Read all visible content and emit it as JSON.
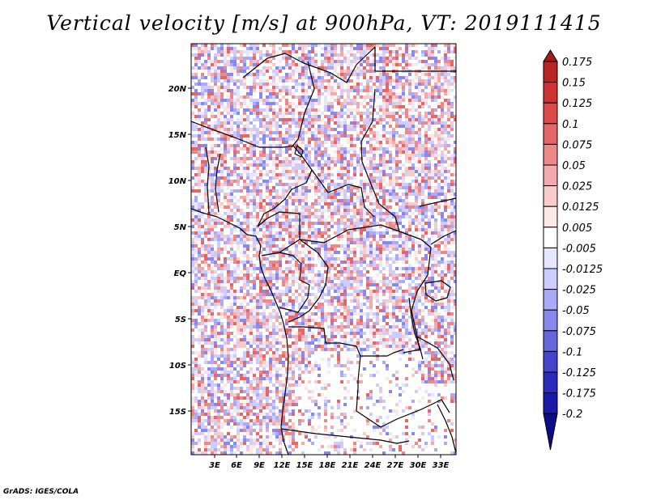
{
  "title": "Vertical velocity [m/s] at 900hPa, VT: 2019111415",
  "credit": "GrADS: IGES/COLA",
  "map": {
    "lat_labels": [
      "20N",
      "15N",
      "10N",
      "5N",
      "EQ",
      "5S",
      "10S",
      "15S"
    ],
    "lon_labels": [
      "3E",
      "6E",
      "9E",
      "12E",
      "15E",
      "18E",
      "21E",
      "24E",
      "27E",
      "30E",
      "33E"
    ]
  },
  "colorbar": {
    "levels": [
      "0.175",
      "0.15",
      "0.125",
      "0.1",
      "0.075",
      "0.05",
      "0.025",
      "0.0125",
      "0.005",
      "-0.005",
      "-0.0125",
      "-0.025",
      "-0.05",
      "-0.075",
      "-0.1",
      "-0.125",
      "-0.175",
      "-0.2"
    ],
    "colors": [
      "#a51a1a",
      "#b92323",
      "#cd3333",
      "#dc4a4a",
      "#e56666",
      "#ed8888",
      "#f4aaaa",
      "#f9cccc",
      "#fde8e8",
      "#ffffff",
      "#e6e6ff",
      "#ccccff",
      "#aaaaf6",
      "#8888ee",
      "#6666dd",
      "#4444cc",
      "#2a2abb",
      "#1a1aaa",
      "#0d0d88"
    ]
  }
}
